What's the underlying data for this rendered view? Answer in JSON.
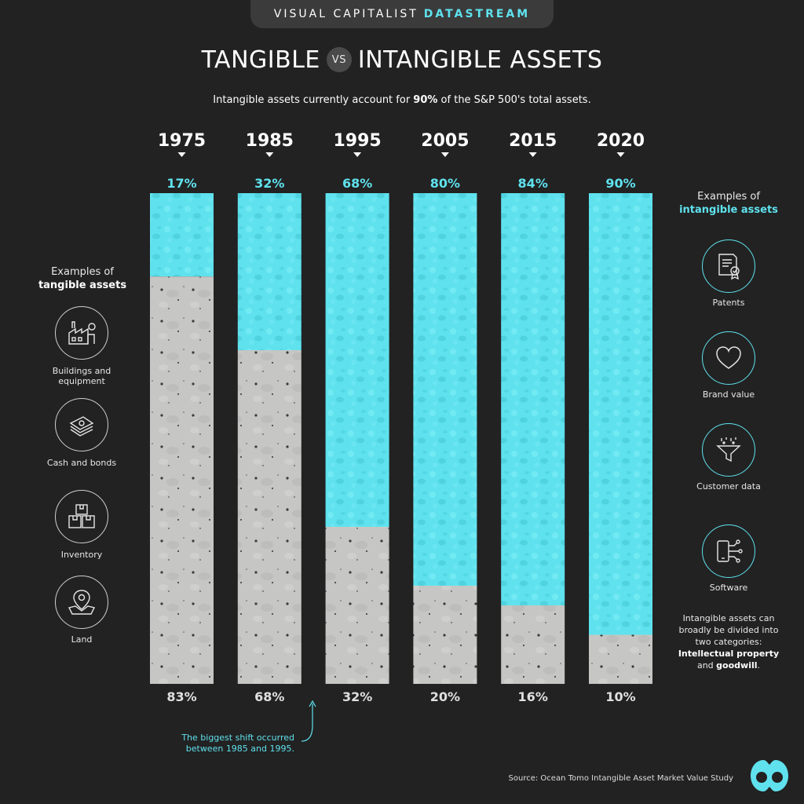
{
  "brand": {
    "name": "VISUAL CAPITALIST",
    "accent": "DATASTREAM"
  },
  "title": {
    "left": "TANGIBLE",
    "vs": "VS",
    "right": "INTANGIBLE ASSETS"
  },
  "subtitle": {
    "pre": "Intangible assets currently account for ",
    "bold": "90%",
    "post": " of the S&P 500's total assets."
  },
  "left_panel": {
    "heading_line1": "Examples of",
    "heading_line2": "tangible assets",
    "items": [
      {
        "icon": "factory-icon",
        "label": "Buildings and equipment"
      },
      {
        "icon": "cash-icon",
        "label": "Cash and bonds"
      },
      {
        "icon": "boxes-icon",
        "label": "Inventory"
      },
      {
        "icon": "map-pin-icon",
        "label": "Land"
      }
    ]
  },
  "right_panel": {
    "heading_line1": "Examples of",
    "heading_line2": "intangible assets",
    "items": [
      {
        "icon": "certificate-icon",
        "label": "Patents"
      },
      {
        "icon": "heart-icon",
        "label": "Brand value"
      },
      {
        "icon": "funnel-icon",
        "label": "Customer data"
      },
      {
        "icon": "phone-network-icon",
        "label": "Software"
      }
    ],
    "note": {
      "pre": "Intangible assets can broadly be divided into two categories: ",
      "bold1": "Intellectual property",
      "mid": " and ",
      "bold2": "goodwill",
      "post": "."
    }
  },
  "shift_note": "The biggest shift occurred between 1985 and 1995.",
  "source": "Source: Ocean Tomo Intangible Asset Market Value Study",
  "colors": {
    "background": "#222222",
    "intangible": "#5fe2ee",
    "tangible": "#c6c6c4",
    "text": "#ffffff"
  },
  "chart_data": {
    "type": "bar",
    "stacked": true,
    "normalized": true,
    "categories": [
      "1975",
      "1985",
      "1995",
      "2005",
      "2015",
      "2020"
    ],
    "series": [
      {
        "name": "intangible assets",
        "values": [
          17,
          32,
          68,
          80,
          84,
          90
        ],
        "labels": [
          "17%",
          "32%",
          "68%",
          "80%",
          "84%",
          "90%"
        ]
      },
      {
        "name": "tangible assets",
        "values": [
          83,
          68,
          32,
          20,
          16,
          10
        ],
        "labels": [
          "83%",
          "68%",
          "32%",
          "20%",
          "16%",
          "10%"
        ]
      }
    ],
    "ylim": [
      0,
      100
    ]
  }
}
